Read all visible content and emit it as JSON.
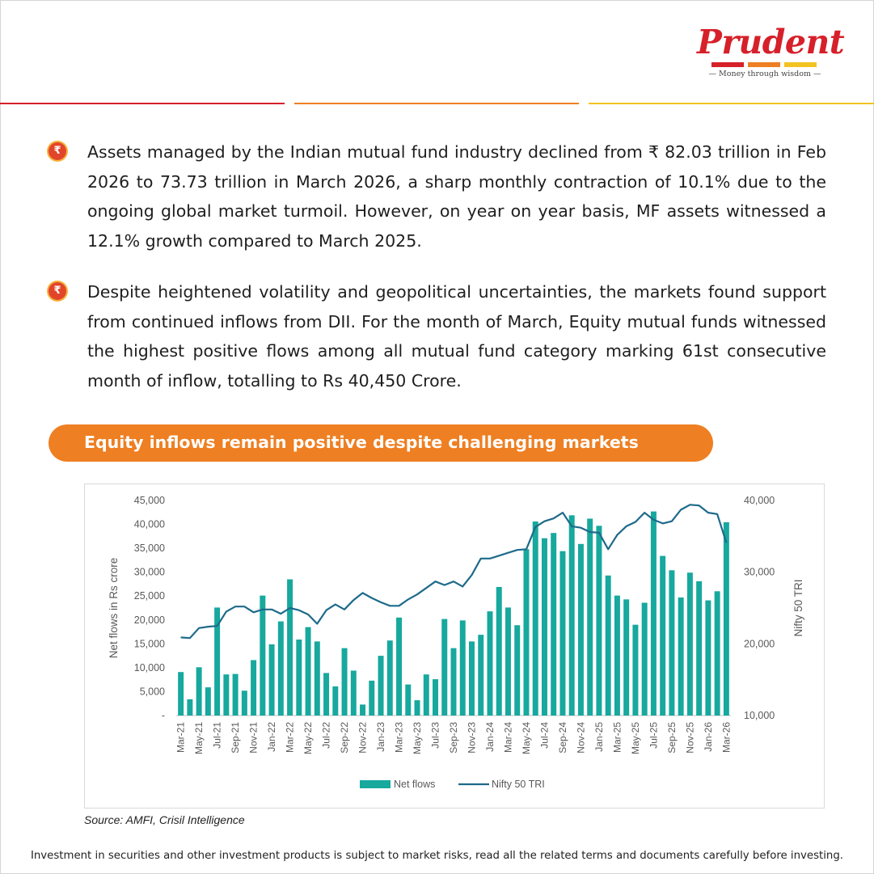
{
  "brand": {
    "name": "Prudent",
    "tagline": "— Money through wisdom —",
    "colors": {
      "red": "#d6202a",
      "orange": "#ee7f22",
      "yellow": "#f2c322"
    }
  },
  "bullets": [
    "Assets managed by the Indian mutual fund industry declined from ₹ 82.03 trillion in Feb 2026 to 73.73 trillion in March 2026, a sharp monthly contraction of 10.1% due to the ongoing global market turmoil. However, on year on year basis, MF assets witnessed a 12.1% growth compared to March 2025.",
    "Despite heightened volatility and geopolitical uncertainties, the markets found support from continued inflows from DII. For the month of March, Equity mutual funds witnessed the highest positive flows among all mutual fund category marking 61st consecutive month of inflow, totalling to Rs 40,450 Crore."
  ],
  "bullet_icon": {
    "name": "rupee-icon",
    "glyph": "₹"
  },
  "banner": {
    "title": "Equity inflows remain positive despite challenging markets"
  },
  "chart_data": {
    "type": "bar+line",
    "ylabel": "Net flows in Rs crore",
    "y2label": "Nifty 50  TRI",
    "ylim": [
      0,
      45000
    ],
    "y2lim": [
      10000,
      40000
    ],
    "yticks": [
      "-",
      "5,000",
      "10,000",
      "15,000",
      "20,000",
      "25,000",
      "30,000",
      "35,000",
      "40,000",
      "45,000"
    ],
    "y2ticks": [
      "10,000",
      "20,000",
      "30,000",
      "40,000"
    ],
    "categories": [
      "Mar-21",
      "Apr-21",
      "May-21",
      "Jun-21",
      "Jul-21",
      "Aug-21",
      "Sep-21",
      "Oct-21",
      "Nov-21",
      "Dec-21",
      "Jan-22",
      "Feb-22",
      "Mar-22",
      "Apr-22",
      "May-22",
      "Jun-22",
      "Jul-22",
      "Aug-22",
      "Sep-22",
      "Oct-22",
      "Nov-22",
      "Dec-22",
      "Jan-23",
      "Feb-23",
      "Mar-23",
      "Apr-23",
      "May-23",
      "Jun-23",
      "Jul-23",
      "Aug-23",
      "Sep-23",
      "Oct-23",
      "Nov-23",
      "Dec-23",
      "Jan-24",
      "Feb-24",
      "Mar-24",
      "Apr-24",
      "May-24",
      "Jun-24",
      "Jul-24",
      "Aug-24",
      "Sep-24",
      "Oct-24",
      "Nov-24",
      "Dec-24",
      "Jan-25",
      "Feb-25",
      "Mar-25",
      "Apr-25",
      "May-25",
      "Jun-25",
      "Jul-25",
      "Aug-25",
      "Sep-25",
      "Oct-25",
      "Nov-25",
      "Dec-25",
      "Jan-26",
      "Feb-26",
      "Mar-26"
    ],
    "xticklabels": [
      "Mar-21",
      "May-21",
      "Jul-21",
      "Sep-21",
      "Nov-21",
      "Jan-22",
      "Mar-22",
      "May-22",
      "Jul-22",
      "Sep-22",
      "Nov-22",
      "Jan-23",
      "Mar-23",
      "May-23",
      "Jul-23",
      "Sep-23",
      "Nov-23",
      "Jan-24",
      "Mar-24",
      "May-24",
      "Jul-24",
      "Sep-24",
      "Nov-24",
      "Jan-25",
      "Mar-25",
      "May-25",
      "Jul-25",
      "Sep-25",
      "Nov-25",
      "Jan-26",
      "Mar-26"
    ],
    "series": [
      {
        "name": "Net flows",
        "type": "bar",
        "axis": "left",
        "color": "#17a89e",
        "values": [
          9100,
          3400,
          10100,
          5900,
          22600,
          8600,
          8700,
          5200,
          11600,
          25100,
          14900,
          19700,
          28500,
          15900,
          18500,
          15500,
          8900,
          6100,
          14100,
          9400,
          2300,
          7300,
          12500,
          15700,
          20500,
          6500,
          3200,
          8600,
          7600,
          20200,
          14100,
          19900,
          15500,
          16900,
          21800,
          26900,
          22600,
          18900,
          34800,
          40600,
          37100,
          38200,
          34400,
          41900,
          35900,
          41200,
          39700,
          29300,
          25100,
          24300,
          19000,
          23600,
          42700,
          33400,
          30400,
          24700,
          29900,
          28100,
          24100,
          26000,
          40450
        ]
      },
      {
        "name": "Nifty 50 TRI",
        "type": "line",
        "axis": "right",
        "color": "#1d6a8a",
        "values": [
          20900,
          20800,
          22200,
          22400,
          22500,
          24500,
          25200,
          25200,
          24400,
          24800,
          24800,
          24200,
          25000,
          24700,
          24100,
          22800,
          24700,
          25500,
          24800,
          26100,
          27100,
          26400,
          25800,
          25300,
          25300,
          26200,
          26900,
          27800,
          28700,
          28200,
          28700,
          28000,
          29600,
          31900,
          31900,
          32300,
          32700,
          33100,
          33200,
          36300,
          37100,
          37500,
          38300,
          36400,
          36200,
          35600,
          35500,
          33200,
          35200,
          36400,
          37000,
          38300,
          37300,
          36800,
          37100,
          38700,
          39400,
          39300,
          38300,
          38100,
          34100
        ]
      }
    ],
    "legend": {
      "position": "bottom",
      "items": [
        "Net flows",
        "Nifty 50 TRI"
      ]
    },
    "grid": false
  },
  "source": "Source: AMFI, Crisil Intelligence",
  "disclaimer": "Investment in securities and other investment products is subject to market risks, read all the related terms and documents carefully before investing."
}
